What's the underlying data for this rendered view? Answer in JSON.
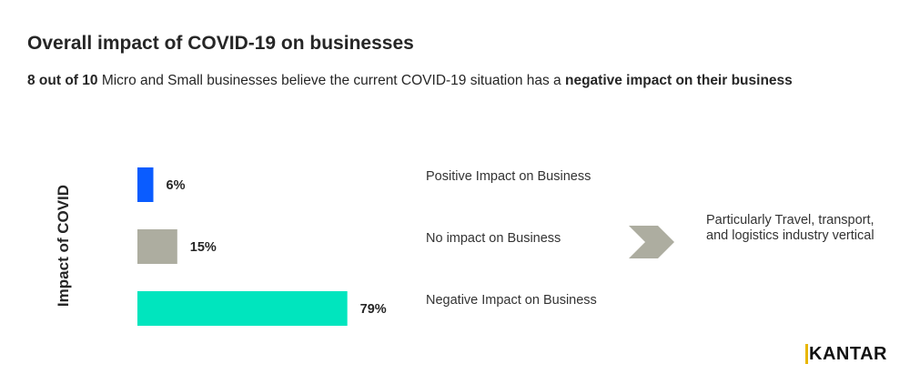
{
  "title": "Overall impact of COVID-19 on businesses",
  "subtitle": {
    "bold_start": "8 out of 10",
    "middle": " Micro and Small businesses believe the current COVID-19 situation has a ",
    "bold_end": "negative impact on their business"
  },
  "chart_data": {
    "type": "bar",
    "orientation": "horizontal",
    "ylabel": "Impact of COVID",
    "categories": [
      "Positive Impact on Business",
      "No impact on Business",
      "Negative Impact on Business"
    ],
    "values": [
      6,
      15,
      79
    ],
    "value_labels": [
      "6%",
      "15%",
      "79%"
    ],
    "colors": [
      "#0a5cff",
      "#adada0",
      "#00e5be"
    ],
    "xlim": [
      0,
      100
    ],
    "grid": false
  },
  "annotation": {
    "text": "Particularly Travel, transport, and logistics industry vertical",
    "icon": "chevron-right-icon",
    "color": "#adada0"
  },
  "logo": "KANTAR"
}
